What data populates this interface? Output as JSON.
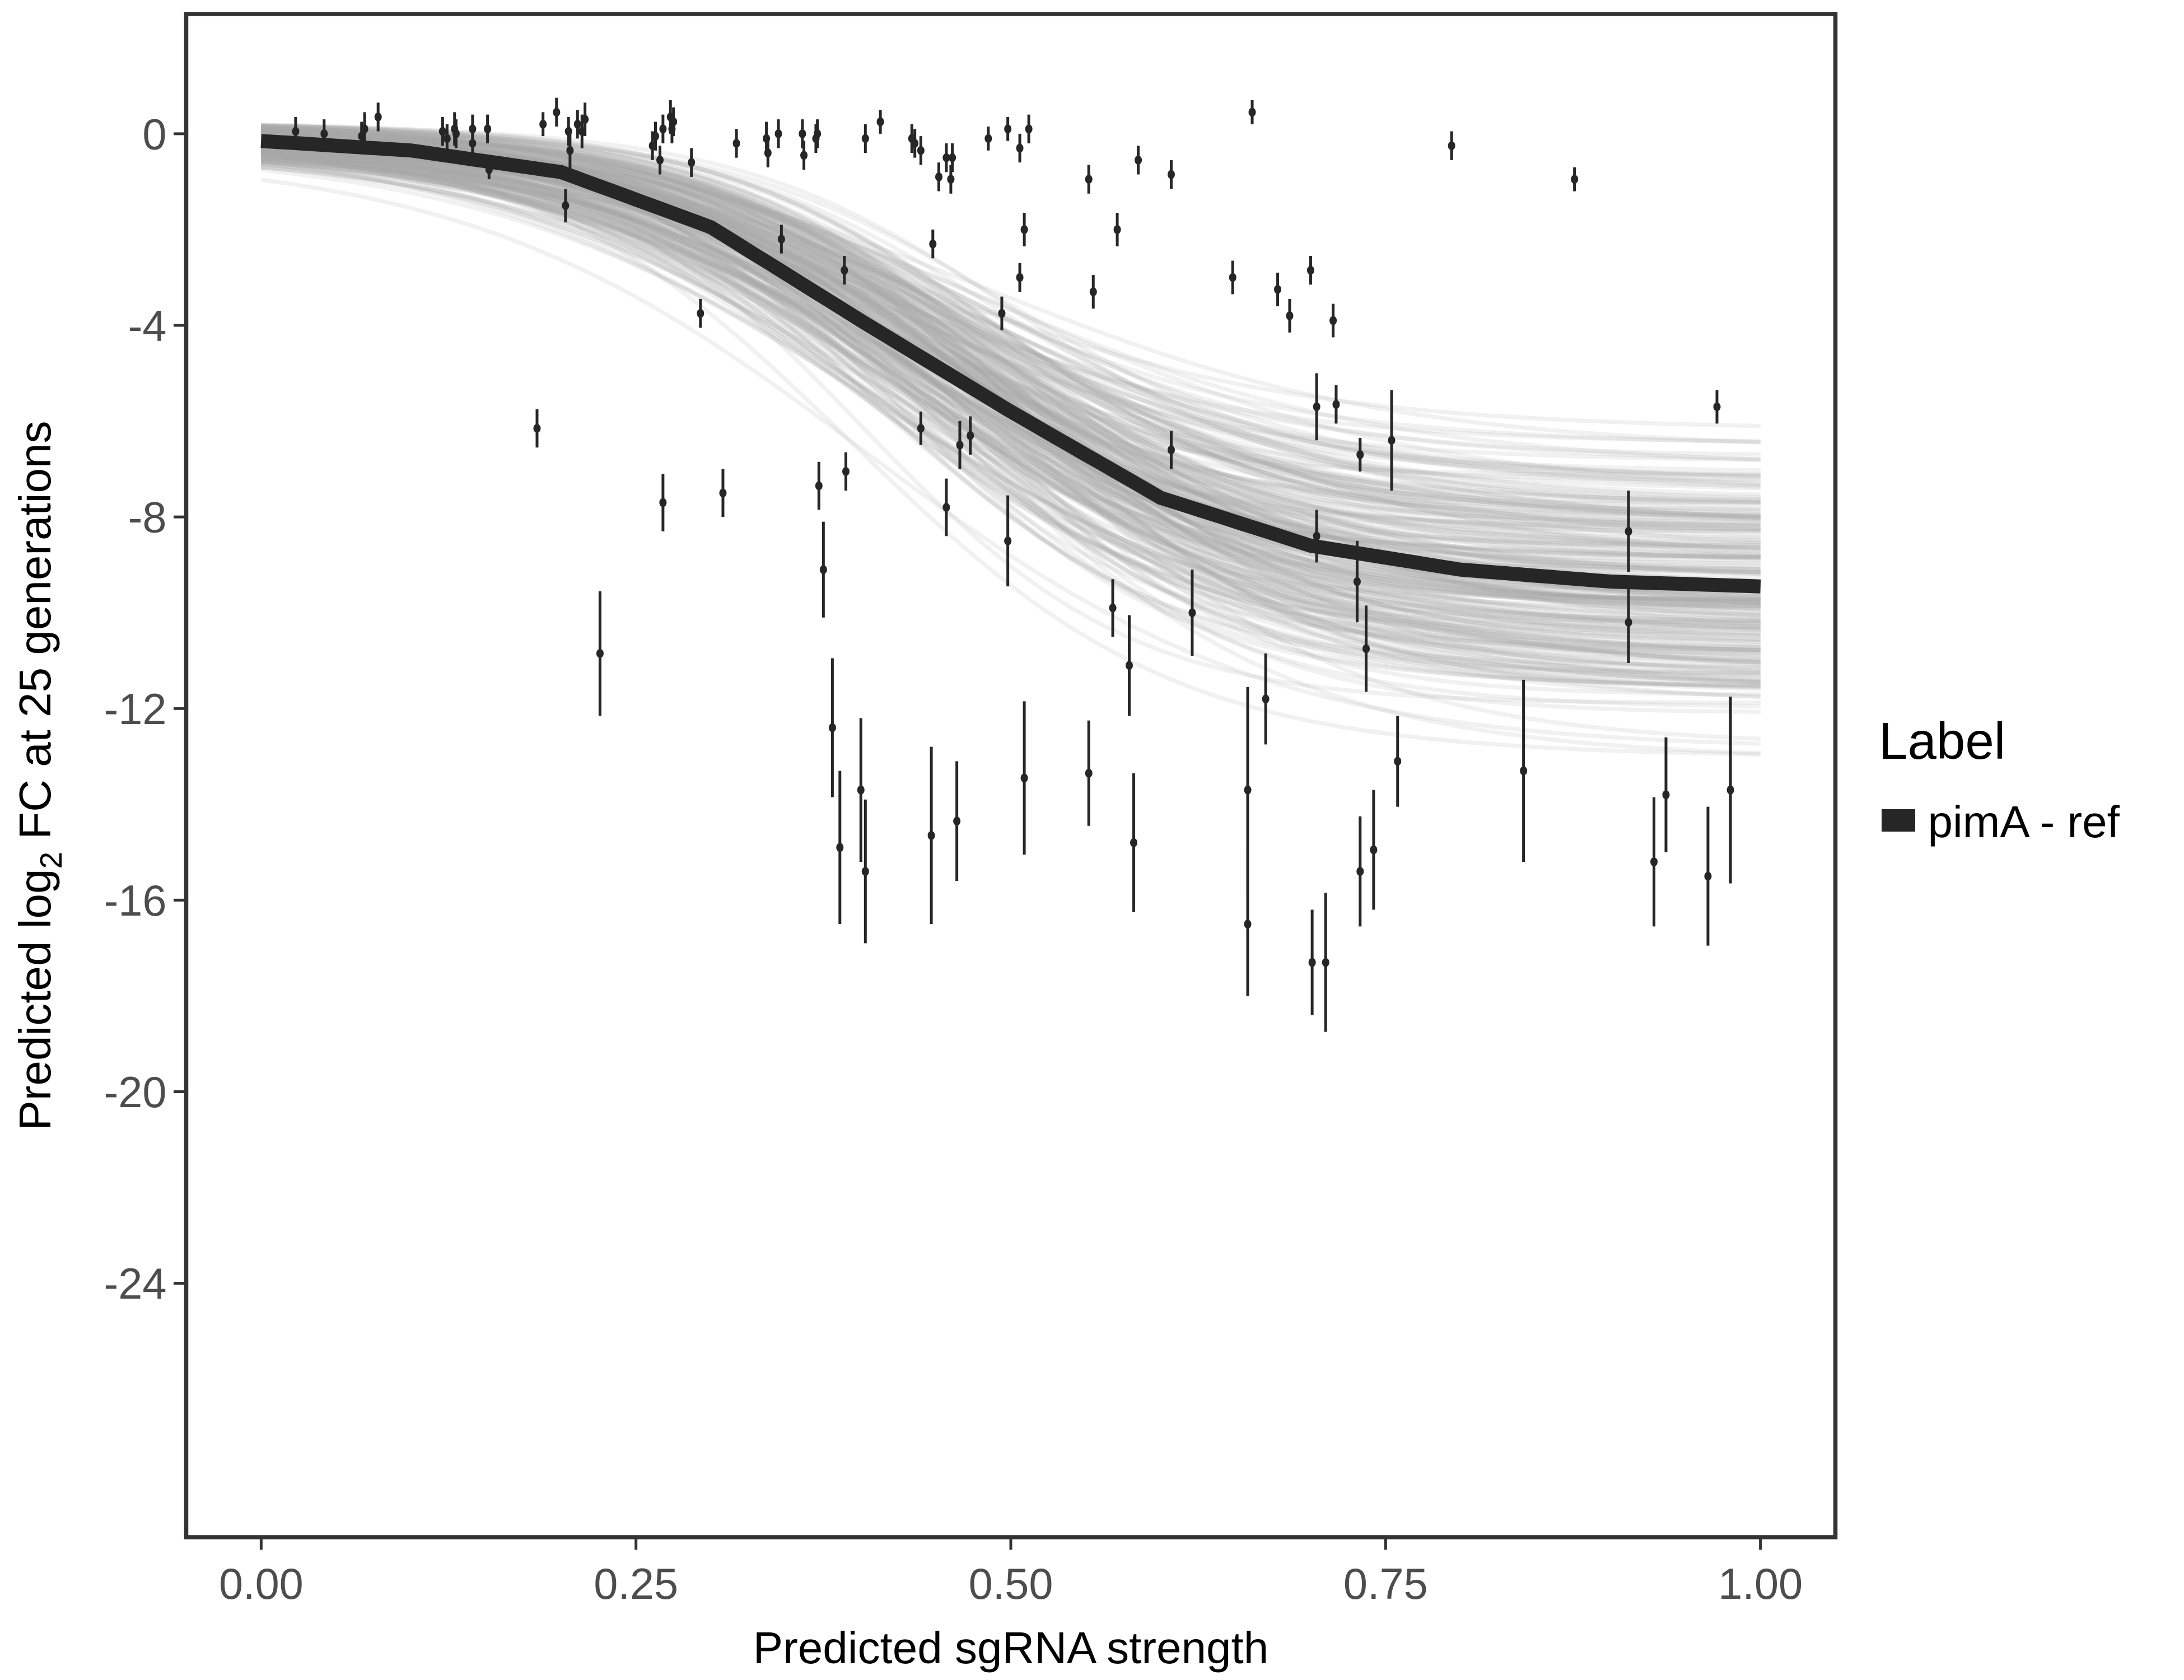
{
  "chart_data": {
    "type": "scatter",
    "title": "",
    "xlabel": "Predicted sgRNA strength",
    "ylabel_prefix": "Predicted  log",
    "ylabel_sub": "2",
    "ylabel_suffix": " FC at 25 generations",
    "xlim": [
      -0.05,
      1.05
    ],
    "ylim": [
      -29.3,
      2.5
    ],
    "x_ticks": [
      0,
      0.25,
      0.5,
      0.75,
      1
    ],
    "x_tick_labels": [
      "0.00",
      "0.25",
      "0.50",
      "0.75",
      "1.00"
    ],
    "y_ticks": [
      0,
      -4,
      -8,
      -12,
      -16,
      -20,
      -24
    ],
    "y_tick_labels": [
      "0",
      "-4",
      "-8",
      "-12",
      "-16",
      "-20",
      "-24"
    ],
    "grid": false,
    "legend": {
      "title": "Label",
      "placement": "right",
      "entries": [
        {
          "label": "pimA - ref",
          "color": "#262626"
        }
      ]
    },
    "colors": {
      "points": "#262626",
      "fit": "#262626",
      "posterior_draws": "#aaaaaa"
    },
    "fit_line": {
      "x": [
        0,
        0.1,
        0.2,
        0.3,
        0.4,
        0.45,
        0.5,
        0.6,
        0.7,
        0.8,
        0.9,
        1.0
      ],
      "y": [
        -0.15,
        -0.35,
        -0.8,
        -1.95,
        -3.9,
        -4.85,
        -5.8,
        -7.6,
        -8.6,
        -9.1,
        -9.35,
        -9.45
      ]
    },
    "points_columns": [
      "x",
      "y",
      "error"
    ],
    "points": [
      [
        0.023,
        0.05,
        0.3
      ],
      [
        0.042,
        0.0,
        0.3
      ],
      [
        0.067,
        -0.05,
        0.3
      ],
      [
        0.069,
        0.1,
        0.35
      ],
      [
        0.078,
        0.35,
        0.3
      ],
      [
        0.121,
        0.05,
        0.3
      ],
      [
        0.124,
        -0.1,
        0.3
      ],
      [
        0.129,
        0.1,
        0.35
      ],
      [
        0.13,
        0.0,
        0.3
      ],
      [
        0.141,
        -0.2,
        0.3
      ],
      [
        0.141,
        0.1,
        0.3
      ],
      [
        0.151,
        0.1,
        0.3
      ],
      [
        0.152,
        -0.75,
        0.2
      ],
      [
        0.184,
        -6.15,
        0.4
      ],
      [
        0.188,
        0.2,
        0.25
      ],
      [
        0.197,
        0.45,
        0.3
      ],
      [
        0.203,
        -1.5,
        0.35
      ],
      [
        0.205,
        0.05,
        0.3
      ],
      [
        0.206,
        -0.35,
        0.4
      ],
      [
        0.211,
        0.2,
        0.3
      ],
      [
        0.214,
        0.05,
        0.35
      ],
      [
        0.216,
        0.3,
        0.35
      ],
      [
        0.226,
        -10.85,
        1.3
      ],
      [
        0.261,
        -0.25,
        0.3
      ],
      [
        0.263,
        -0.05,
        0.3
      ],
      [
        0.266,
        -0.55,
        0.3
      ],
      [
        0.268,
        0.1,
        0.3
      ],
      [
        0.268,
        -7.7,
        0.6
      ],
      [
        0.273,
        0.35,
        0.35
      ],
      [
        0.274,
        0.1,
        0.3
      ],
      [
        0.275,
        0.25,
        0.3
      ],
      [
        0.287,
        -0.6,
        0.3
      ],
      [
        0.293,
        -3.75,
        0.3
      ],
      [
        0.308,
        -7.5,
        0.5
      ],
      [
        0.317,
        -0.2,
        0.3
      ],
      [
        0.337,
        -0.1,
        0.35
      ],
      [
        0.338,
        -0.4,
        0.3
      ],
      [
        0.345,
        0.0,
        0.3
      ],
      [
        0.347,
        -2.2,
        0.3
      ],
      [
        0.361,
        0.0,
        0.3
      ],
      [
        0.362,
        -0.45,
        0.3
      ],
      [
        0.37,
        -0.1,
        0.3
      ],
      [
        0.371,
        0.0,
        0.3
      ],
      [
        0.372,
        -7.35,
        0.5
      ],
      [
        0.375,
        -9.1,
        1.0
      ],
      [
        0.381,
        -12.4,
        1.45
      ],
      [
        0.386,
        -14.9,
        1.6
      ],
      [
        0.389,
        -2.85,
        0.3
      ],
      [
        0.39,
        -7.05,
        0.4
      ],
      [
        0.4,
        -13.7,
        1.5
      ],
      [
        0.403,
        -15.4,
        1.5
      ],
      [
        0.403,
        -0.1,
        0.3
      ],
      [
        0.413,
        0.25,
        0.25
      ],
      [
        0.434,
        -0.1,
        0.3
      ],
      [
        0.436,
        -0.2,
        0.3
      ],
      [
        0.44,
        -0.35,
        0.3
      ],
      [
        0.44,
        -6.15,
        0.35
      ],
      [
        0.447,
        -14.65,
        1.85
      ],
      [
        0.448,
        -2.3,
        0.3
      ],
      [
        0.452,
        -0.9,
        0.3
      ],
      [
        0.457,
        -0.5,
        0.3
      ],
      [
        0.457,
        -7.8,
        0.6
      ],
      [
        0.46,
        -0.95,
        0.3
      ],
      [
        0.461,
        -0.5,
        0.3
      ],
      [
        0.464,
        -14.35,
        1.25
      ],
      [
        0.466,
        -6.5,
        0.5
      ],
      [
        0.473,
        -6.3,
        0.4
      ],
      [
        0.485,
        -0.1,
        0.25
      ],
      [
        0.494,
        -3.75,
        0.35
      ],
      [
        0.498,
        0.1,
        0.25
      ],
      [
        0.498,
        -8.5,
        0.95
      ],
      [
        0.506,
        -0.3,
        0.3
      ],
      [
        0.506,
        -3.0,
        0.3
      ],
      [
        0.509,
        -2.0,
        0.35
      ],
      [
        0.509,
        -13.45,
        1.6
      ],
      [
        0.512,
        0.1,
        0.3
      ],
      [
        0.552,
        -0.95,
        0.3
      ],
      [
        0.552,
        -13.35,
        1.1
      ],
      [
        0.555,
        -3.3,
        0.35
      ],
      [
        0.568,
        -9.9,
        0.6
      ],
      [
        0.571,
        -2.0,
        0.35
      ],
      [
        0.579,
        -11.1,
        1.05
      ],
      [
        0.582,
        -14.8,
        1.45
      ],
      [
        0.585,
        -0.55,
        0.3
      ],
      [
        0.607,
        -0.85,
        0.3
      ],
      [
        0.607,
        -6.6,
        0.4
      ],
      [
        0.621,
        -10.0,
        0.9
      ],
      [
        0.648,
        -3.0,
        0.35
      ],
      [
        0.658,
        -13.7,
        2.15
      ],
      [
        0.658,
        -16.5,
        1.5
      ],
      [
        0.661,
        0.45,
        0.25
      ],
      [
        0.67,
        -11.8,
        0.95
      ],
      [
        0.678,
        -3.25,
        0.35
      ],
      [
        0.686,
        -3.8,
        0.35
      ],
      [
        0.7,
        -2.85,
        0.3
      ],
      [
        0.701,
        -17.3,
        1.1
      ],
      [
        0.704,
        -5.7,
        0.7
      ],
      [
        0.704,
        -8.4,
        0.55
      ],
      [
        0.71,
        -17.3,
        1.45
      ],
      [
        0.715,
        -3.9,
        0.35
      ],
      [
        0.717,
        -5.65,
        0.4
      ],
      [
        0.731,
        -9.35,
        0.85
      ],
      [
        0.733,
        -6.7,
        0.35
      ],
      [
        0.733,
        -15.4,
        1.15
      ],
      [
        0.737,
        -10.75,
        0.9
      ],
      [
        0.742,
        -14.95,
        1.25
      ],
      [
        0.754,
        -6.4,
        1.05
      ],
      [
        0.758,
        -13.1,
        0.95
      ],
      [
        0.794,
        -0.25,
        0.3
      ],
      [
        0.842,
        -13.3,
        1.9
      ],
      [
        0.876,
        -0.95,
        0.25
      ],
      [
        0.912,
        -8.3,
        0.85
      ],
      [
        0.912,
        -10.2,
        0.85
      ],
      [
        0.929,
        -15.2,
        1.35
      ],
      [
        0.937,
        -13.8,
        1.2
      ],
      [
        0.965,
        -15.5,
        1.45
      ],
      [
        0.971,
        -5.7,
        0.35
      ],
      [
        0.98,
        -13.7,
        1.95
      ]
    ]
  }
}
